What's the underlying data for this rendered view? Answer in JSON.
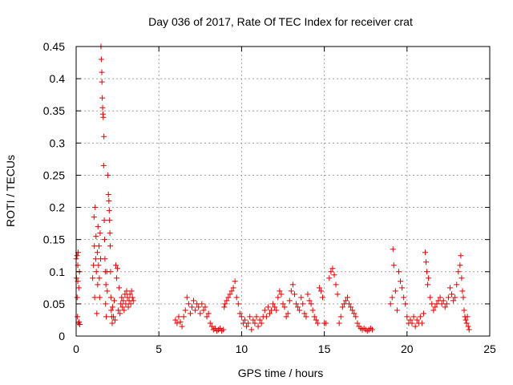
{
  "chart_data": {
    "type": "scatter",
    "title": "Day 036 of 2017, Rate Of TEC Index for receiver crat",
    "xlabel": "GPS time / hours",
    "ylabel": "ROTI / TECUs",
    "xlim": [
      0,
      25
    ],
    "ylim": [
      0,
      0.45
    ],
    "xticks": [
      0,
      5,
      10,
      15,
      20,
      25
    ],
    "xtick_labels": [
      "0",
      "5",
      "10",
      "15",
      "20",
      "25"
    ],
    "yticks": [
      0,
      0.05,
      0.1,
      0.15,
      0.2,
      0.25,
      0.3,
      0.35,
      0.4,
      0.45
    ],
    "ytick_labels": [
      "0",
      "0.05",
      "0.1",
      "0.15",
      "0.2",
      "0.25",
      "0.3",
      "0.35",
      "0.4",
      "0.45"
    ],
    "grid": true,
    "marker": "+",
    "color": "#e00000",
    "points": [
      [
        0.0,
        0.12
      ],
      [
        0.02,
        0.09
      ],
      [
        0.05,
        0.125
      ],
      [
        0.06,
        0.06
      ],
      [
        0.08,
        0.03
      ],
      [
        0.1,
        0.085
      ],
      [
        0.1,
        0.11
      ],
      [
        0.12,
        0.13
      ],
      [
        0.14,
        0.02
      ],
      [
        0.16,
        0.075
      ],
      [
        0.18,
        0.022
      ],
      [
        0.2,
        0.1
      ],
      [
        0.22,
        0.018
      ],
      [
        1.0,
        0.09
      ],
      [
        1.05,
        0.11
      ],
      [
        1.08,
        0.185
      ],
      [
        1.1,
        0.14
      ],
      [
        1.12,
        0.06
      ],
      [
        1.15,
        0.2
      ],
      [
        1.18,
        0.12
      ],
      [
        1.2,
        0.155
      ],
      [
        1.22,
        0.1
      ],
      [
        1.25,
        0.035
      ],
      [
        1.28,
        0.13
      ],
      [
        1.3,
        0.08
      ],
      [
        1.32,
        0.17
      ],
      [
        1.35,
        0.11
      ],
      [
        1.38,
        0.14
      ],
      [
        1.4,
        0.09
      ],
      [
        1.42,
        0.06
      ],
      [
        1.45,
        0.16
      ],
      [
        1.48,
        0.12
      ],
      [
        1.5,
        0.45
      ],
      [
        1.52,
        0.43
      ],
      [
        1.55,
        0.41
      ],
      [
        1.56,
        0.395
      ],
      [
        1.58,
        0.37
      ],
      [
        1.6,
        0.355
      ],
      [
        1.62,
        0.345
      ],
      [
        1.64,
        0.34
      ],
      [
        1.66,
        0.265
      ],
      [
        1.68,
        0.31
      ],
      [
        1.7,
        0.18
      ],
      [
        1.72,
        0.15
      ],
      [
        1.74,
        0.12
      ],
      [
        1.76,
        0.1
      ],
      [
        1.78,
        0.05
      ],
      [
        1.8,
        0.08
      ],
      [
        1.82,
        0.03
      ],
      [
        1.85,
        0.1
      ],
      [
        1.88,
        0.07
      ],
      [
        1.92,
        0.25
      ],
      [
        1.95,
        0.22
      ],
      [
        1.98,
        0.21
      ],
      [
        2.0,
        0.195
      ],
      [
        2.02,
        0.18
      ],
      [
        2.04,
        0.16
      ],
      [
        2.06,
        0.14
      ],
      [
        2.08,
        0.1
      ],
      [
        2.1,
        0.06
      ],
      [
        2.12,
        0.04
      ],
      [
        2.15,
        0.03
      ],
      [
        2.18,
        0.02
      ],
      [
        2.2,
        0.045
      ],
      [
        2.25,
        0.03
      ],
      [
        2.3,
        0.055
      ],
      [
        2.35,
        0.025
      ],
      [
        2.4,
        0.11
      ],
      [
        2.45,
        0.09
      ],
      [
        2.5,
        0.105
      ],
      [
        2.55,
        0.04
      ],
      [
        2.6,
        0.075
      ],
      [
        2.65,
        0.035
      ],
      [
        2.7,
        0.05
      ],
      [
        2.75,
        0.06
      ],
      [
        2.8,
        0.045
      ],
      [
        2.85,
        0.055
      ],
      [
        2.9,
        0.04
      ],
      [
        2.95,
        0.065
      ],
      [
        3.0,
        0.05
      ],
      [
        3.05,
        0.07
      ],
      [
        3.1,
        0.06
      ],
      [
        3.15,
        0.045
      ],
      [
        3.2,
        0.055
      ],
      [
        3.25,
        0.065
      ],
      [
        3.3,
        0.05
      ],
      [
        3.35,
        0.07
      ],
      [
        3.4,
        0.06
      ],
      [
        3.45,
        0.055
      ],
      [
        6.0,
        0.025
      ],
      [
        6.1,
        0.02
      ],
      [
        6.2,
        0.03
      ],
      [
        6.3,
        0.022
      ],
      [
        6.4,
        0.015
      ],
      [
        6.5,
        0.03
      ],
      [
        6.6,
        0.04
      ],
      [
        6.7,
        0.06
      ],
      [
        6.8,
        0.05
      ],
      [
        6.9,
        0.035
      ],
      [
        7.0,
        0.045
      ],
      [
        7.1,
        0.055
      ],
      [
        7.2,
        0.04
      ],
      [
        7.3,
        0.05
      ],
      [
        7.4,
        0.045
      ],
      [
        7.5,
        0.035
      ],
      [
        7.6,
        0.05
      ],
      [
        7.7,
        0.04
      ],
      [
        7.8,
        0.045
      ],
      [
        7.9,
        0.03
      ],
      [
        8.0,
        0.035
      ],
      [
        8.1,
        0.02
      ],
      [
        8.2,
        0.015
      ],
      [
        8.3,
        0.01
      ],
      [
        8.4,
        0.012
      ],
      [
        8.5,
        0.008
      ],
      [
        8.6,
        0.01
      ],
      [
        8.7,
        0.012
      ],
      [
        8.8,
        0.008
      ],
      [
        8.9,
        0.01
      ],
      [
        8.95,
        0.045
      ],
      [
        9.0,
        0.05
      ],
      [
        9.1,
        0.055
      ],
      [
        9.2,
        0.06
      ],
      [
        9.3,
        0.065
      ],
      [
        9.4,
        0.07
      ],
      [
        9.5,
        0.075
      ],
      [
        9.6,
        0.085
      ],
      [
        9.7,
        0.06
      ],
      [
        9.8,
        0.05
      ],
      [
        9.9,
        0.035
      ],
      [
        10.0,
        0.03
      ],
      [
        10.1,
        0.02
      ],
      [
        10.2,
        0.025
      ],
      [
        10.3,
        0.015
      ],
      [
        10.4,
        0.02
      ],
      [
        10.5,
        0.03
      ],
      [
        10.6,
        0.01
      ],
      [
        10.7,
        0.025
      ],
      [
        10.8,
        0.02
      ],
      [
        10.9,
        0.03
      ],
      [
        11.0,
        0.015
      ],
      [
        11.1,
        0.025
      ],
      [
        11.2,
        0.02
      ],
      [
        11.3,
        0.03
      ],
      [
        11.4,
        0.04
      ],
      [
        11.5,
        0.03
      ],
      [
        11.6,
        0.045
      ],
      [
        11.7,
        0.035
      ],
      [
        11.8,
        0.04
      ],
      [
        11.9,
        0.05
      ],
      [
        12.0,
        0.045
      ],
      [
        12.1,
        0.04
      ],
      [
        12.2,
        0.06
      ],
      [
        12.3,
        0.07
      ],
      [
        12.4,
        0.065
      ],
      [
        12.5,
        0.05
      ],
      [
        12.6,
        0.045
      ],
      [
        12.7,
        0.03
      ],
      [
        12.8,
        0.035
      ],
      [
        12.9,
        0.055
      ],
      [
        13.0,
        0.07
      ],
      [
        13.1,
        0.08
      ],
      [
        13.2,
        0.065
      ],
      [
        13.3,
        0.05
      ],
      [
        13.4,
        0.045
      ],
      [
        13.5,
        0.04
      ],
      [
        13.6,
        0.06
      ],
      [
        13.7,
        0.05
      ],
      [
        13.8,
        0.035
      ],
      [
        13.9,
        0.03
      ],
      [
        14.0,
        0.065
      ],
      [
        14.1,
        0.055
      ],
      [
        14.2,
        0.05
      ],
      [
        14.3,
        0.04
      ],
      [
        14.4,
        0.03
      ],
      [
        14.5,
        0.025
      ],
      [
        14.6,
        0.02
      ],
      [
        14.7,
        0.075
      ],
      [
        14.8,
        0.07
      ],
      [
        14.9,
        0.06
      ],
      [
        15.0,
        0.02
      ],
      [
        15.1,
        0.02
      ],
      [
        15.3,
        0.09
      ],
      [
        15.4,
        0.1
      ],
      [
        15.5,
        0.105
      ],
      [
        15.6,
        0.095
      ],
      [
        15.7,
        0.08
      ],
      [
        15.8,
        0.065
      ],
      [
        15.9,
        0.02
      ],
      [
        16.0,
        0.03
      ],
      [
        16.1,
        0.045
      ],
      [
        16.2,
        0.05
      ],
      [
        16.3,
        0.055
      ],
      [
        16.4,
        0.06
      ],
      [
        16.5,
        0.05
      ],
      [
        16.6,
        0.045
      ],
      [
        16.7,
        0.04
      ],
      [
        16.8,
        0.035
      ],
      [
        16.9,
        0.03
      ],
      [
        17.0,
        0.02
      ],
      [
        17.1,
        0.015
      ],
      [
        17.2,
        0.012
      ],
      [
        17.3,
        0.01
      ],
      [
        17.4,
        0.012
      ],
      [
        17.5,
        0.01
      ],
      [
        17.6,
        0.008
      ],
      [
        17.7,
        0.01
      ],
      [
        17.8,
        0.012
      ],
      [
        17.9,
        0.01
      ],
      [
        19.0,
        0.05
      ],
      [
        19.1,
        0.06
      ],
      [
        19.15,
        0.135
      ],
      [
        19.2,
        0.11
      ],
      [
        19.3,
        0.07
      ],
      [
        19.4,
        0.04
      ],
      [
        19.5,
        0.1
      ],
      [
        19.6,
        0.085
      ],
      [
        19.7,
        0.075
      ],
      [
        19.8,
        0.06
      ],
      [
        19.9,
        0.05
      ],
      [
        20.0,
        0.03
      ],
      [
        20.1,
        0.02
      ],
      [
        20.2,
        0.025
      ],
      [
        20.3,
        0.02
      ],
      [
        20.4,
        0.03
      ],
      [
        20.5,
        0.015
      ],
      [
        20.6,
        0.025
      ],
      [
        20.7,
        0.02
      ],
      [
        20.8,
        0.03
      ],
      [
        20.9,
        0.02
      ],
      [
        21.0,
        0.035
      ],
      [
        21.1,
        0.13
      ],
      [
        21.15,
        0.115
      ],
      [
        21.2,
        0.1
      ],
      [
        21.25,
        0.08
      ],
      [
        21.3,
        0.09
      ],
      [
        21.4,
        0.06
      ],
      [
        21.5,
        0.05
      ],
      [
        21.6,
        0.04
      ],
      [
        21.7,
        0.045
      ],
      [
        21.8,
        0.05
      ],
      [
        21.9,
        0.055
      ],
      [
        22.0,
        0.06
      ],
      [
        22.1,
        0.05
      ],
      [
        22.2,
        0.055
      ],
      [
        22.3,
        0.045
      ],
      [
        22.4,
        0.05
      ],
      [
        22.5,
        0.06
      ],
      [
        22.6,
        0.075
      ],
      [
        22.7,
        0.065
      ],
      [
        22.8,
        0.055
      ],
      [
        22.9,
        0.06
      ],
      [
        23.0,
        0.08
      ],
      [
        23.1,
        0.1
      ],
      [
        23.2,
        0.11
      ],
      [
        23.25,
        0.125
      ],
      [
        23.3,
        0.09
      ],
      [
        23.35,
        0.07
      ],
      [
        23.4,
        0.06
      ],
      [
        23.45,
        0.04
      ],
      [
        23.5,
        0.03
      ],
      [
        23.55,
        0.025
      ],
      [
        23.6,
        0.02
      ],
      [
        23.65,
        0.03
      ],
      [
        23.7,
        0.015
      ],
      [
        23.75,
        0.01
      ]
    ]
  }
}
